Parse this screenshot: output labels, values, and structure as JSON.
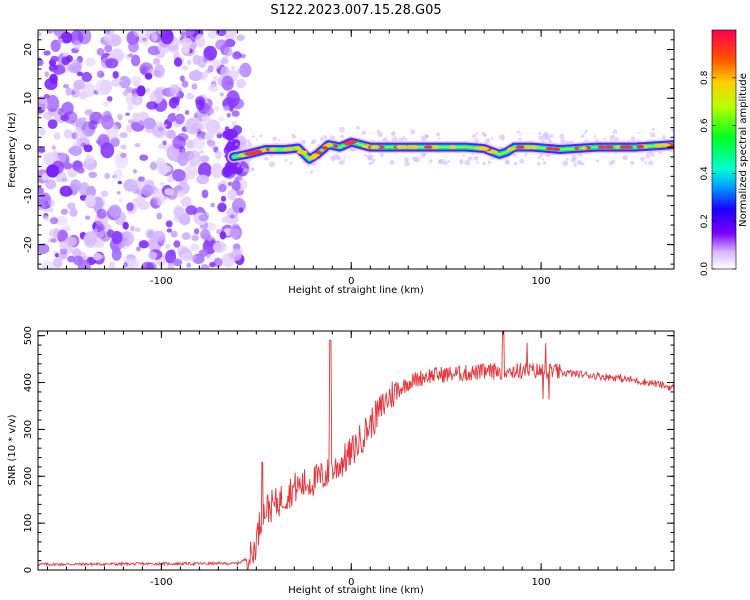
{
  "figure": {
    "title": "S122.2023.007.15.28.G05"
  },
  "chart_data": [
    {
      "id": "spectrogram",
      "type": "heatmap",
      "title": "",
      "xlabel": "Height of straight line (km)",
      "ylabel": "Frequency (Hz)",
      "xlim": [
        -165,
        170
      ],
      "ylim": [
        -25,
        24
      ],
      "xticks": [
        -100,
        0,
        100
      ],
      "yticks": [
        -20,
        -10,
        0,
        10,
        20
      ],
      "colorbar": {
        "label": "Normalized spectral amplitude",
        "range": [
          0,
          1
        ],
        "ticks": [
          0.0,
          0.2,
          0.4,
          0.6,
          0.8
        ],
        "colormap": "gist_rainbow",
        "placement": "right"
      },
      "noise_region_x": [
        -165,
        -62
      ],
      "signal_trace": {
        "x": [
          -62,
          -55,
          -45,
          -35,
          -28,
          -22,
          -18,
          -12,
          -6,
          0,
          10,
          20,
          40,
          60,
          70,
          78,
          82,
          86,
          95,
          110,
          130,
          150,
          170
        ],
        "frequency": [
          -2,
          -1.5,
          -0.5,
          -0.5,
          -0.2,
          -2.5,
          -1.5,
          0.5,
          0,
          1,
          0,
          0,
          0,
          0,
          -0.3,
          -1.5,
          -1,
          0,
          0,
          -0.5,
          0,
          0,
          0.5
        ]
      }
    },
    {
      "id": "snr",
      "type": "line",
      "title": "",
      "xlabel": "Height of straight line (km)",
      "ylabel": "SNR (10 * v/v)",
      "xlim": [
        -165,
        170
      ],
      "ylim": [
        0,
        510
      ],
      "xticks": [
        -100,
        0,
        100
      ],
      "yticks": [
        0,
        100,
        200,
        300,
        400,
        500
      ],
      "line_color": "#e8353b",
      "series_envelope": {
        "x": [
          -165,
          -60,
          -52,
          -48,
          -45,
          -40,
          -30,
          -20,
          -10,
          0,
          10,
          20,
          30,
          40,
          60,
          80,
          100,
          120,
          140,
          160,
          170
        ],
        "y": [
          12,
          14,
          30,
          100,
          130,
          140,
          175,
          190,
          210,
          250,
          310,
          370,
          400,
          415,
          420,
          425,
          425,
          418,
          410,
          398,
          388
        ]
      },
      "spikes": [
        {
          "x": -47,
          "y": 230
        },
        {
          "x": -11,
          "y": 490
        },
        {
          "x": 80,
          "y": 510
        }
      ]
    }
  ]
}
